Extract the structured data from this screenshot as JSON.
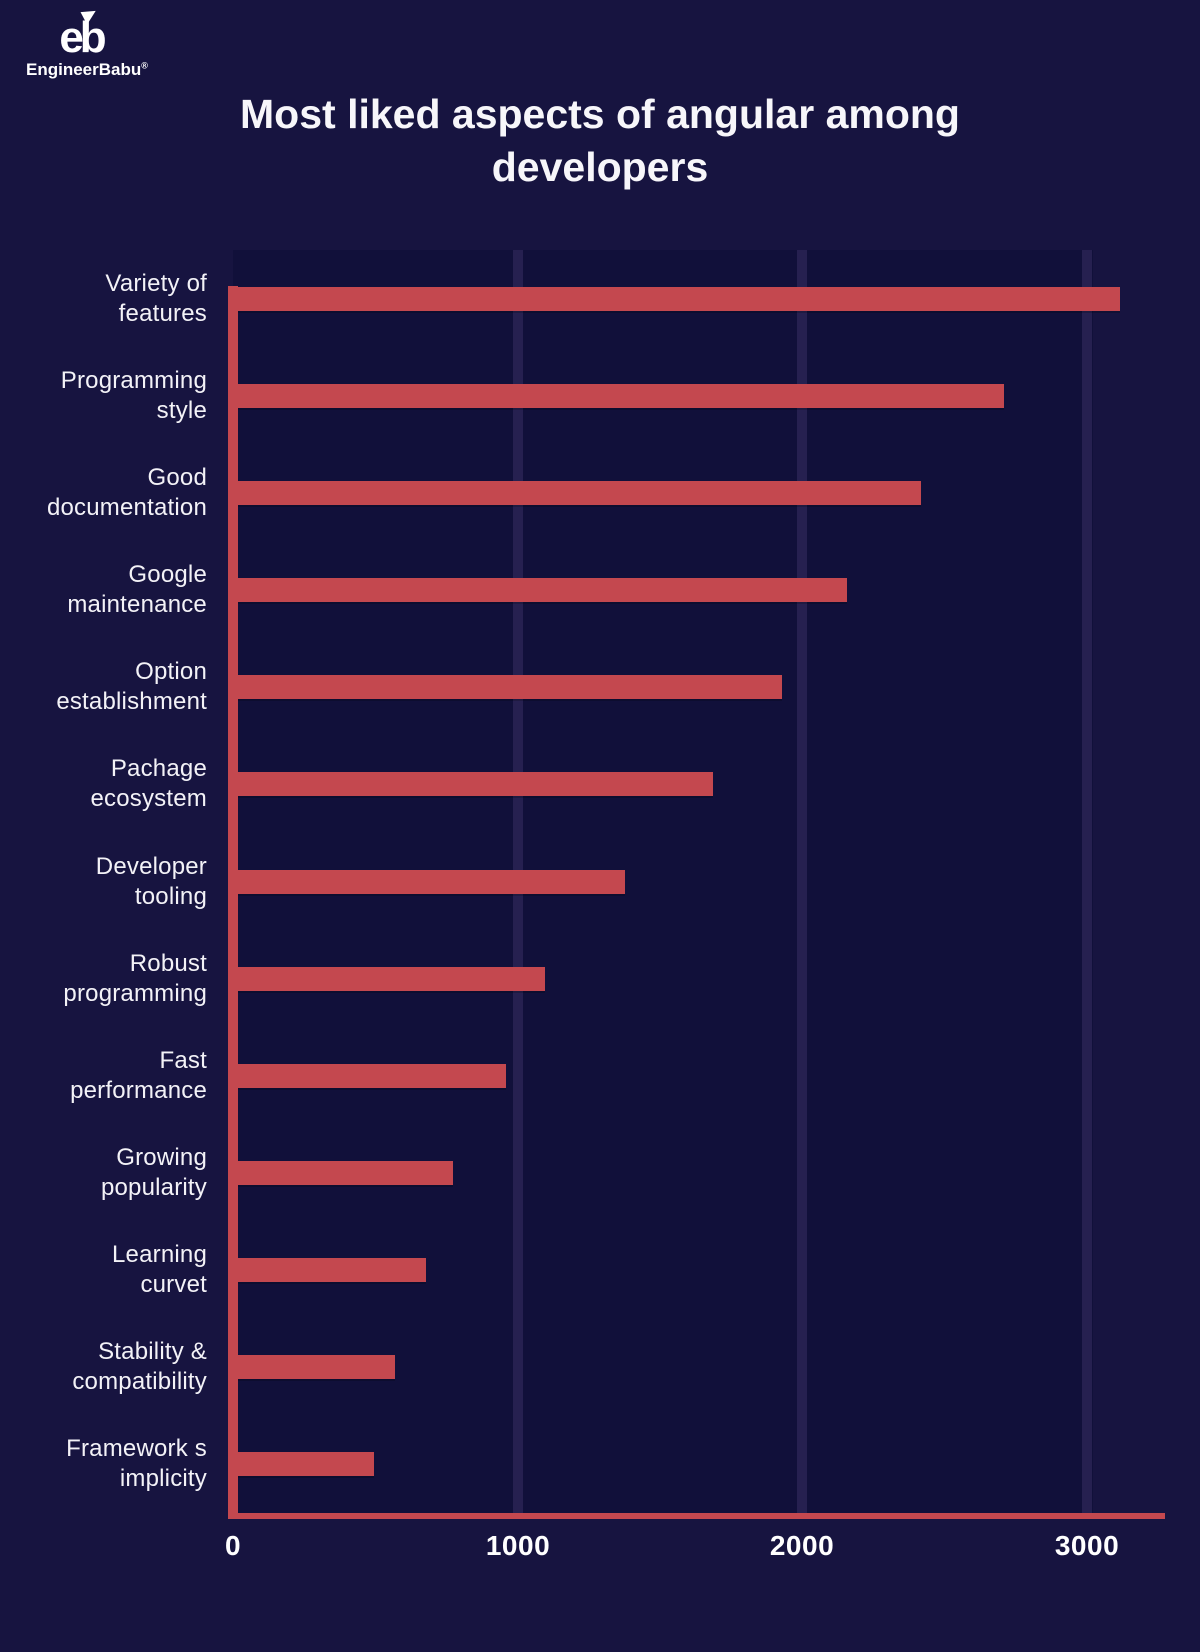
{
  "brand": {
    "monogram": "eb",
    "name": "EngineerBabu",
    "registered": "®"
  },
  "title": "Most liked aspects of angular among developers",
  "chart_data": {
    "type": "bar",
    "orientation": "horizontal",
    "title": "Most liked aspects of angular among developers",
    "categories": [
      "Variety of features",
      "Programming style",
      "Good documentation",
      "Google maintenance",
      "Option establishment",
      "Pachage ecosystem",
      "Developer tooling",
      "Robust programming",
      "Fast performance",
      "Growing popularity",
      "Learning curvet",
      "Stability & compatibility",
      "Framework s implicity"
    ],
    "category_lines": [
      [
        "Variety of",
        "features"
      ],
      [
        "Programming",
        "style"
      ],
      [
        "Good",
        "documentation"
      ],
      [
        "Google",
        "maintenance"
      ],
      [
        "Option",
        "establishment"
      ],
      [
        "Pachage",
        "ecosystem"
      ],
      [
        "Developer",
        "tooling"
      ],
      [
        "Robust",
        "programming"
      ],
      [
        "Fast",
        "performance"
      ],
      [
        "Growing",
        "popularity"
      ],
      [
        "Learning",
        "curvet"
      ],
      [
        "Stability &",
        "compatibility"
      ],
      [
        "Framework s",
        "implicity"
      ]
    ],
    "values": [
      3100,
      2690,
      2400,
      2140,
      1910,
      1670,
      1360,
      1080,
      940,
      755,
      660,
      550,
      478
    ],
    "x_ticks": [
      "0",
      "1000",
      "2000",
      "3000"
    ],
    "x_tick_values": [
      0,
      1000,
      2000,
      3000
    ],
    "xlim": [
      0,
      3257
    ],
    "grid": "vertical gridlines at 1000, 2000, 3000",
    "legend": "none"
  },
  "colors": {
    "background": "#171440",
    "plot_panel": "#11103A",
    "bar": "#C4484F",
    "axis": "#C4484F",
    "gridline": "#262050",
    "text": "#F3F2F7"
  }
}
